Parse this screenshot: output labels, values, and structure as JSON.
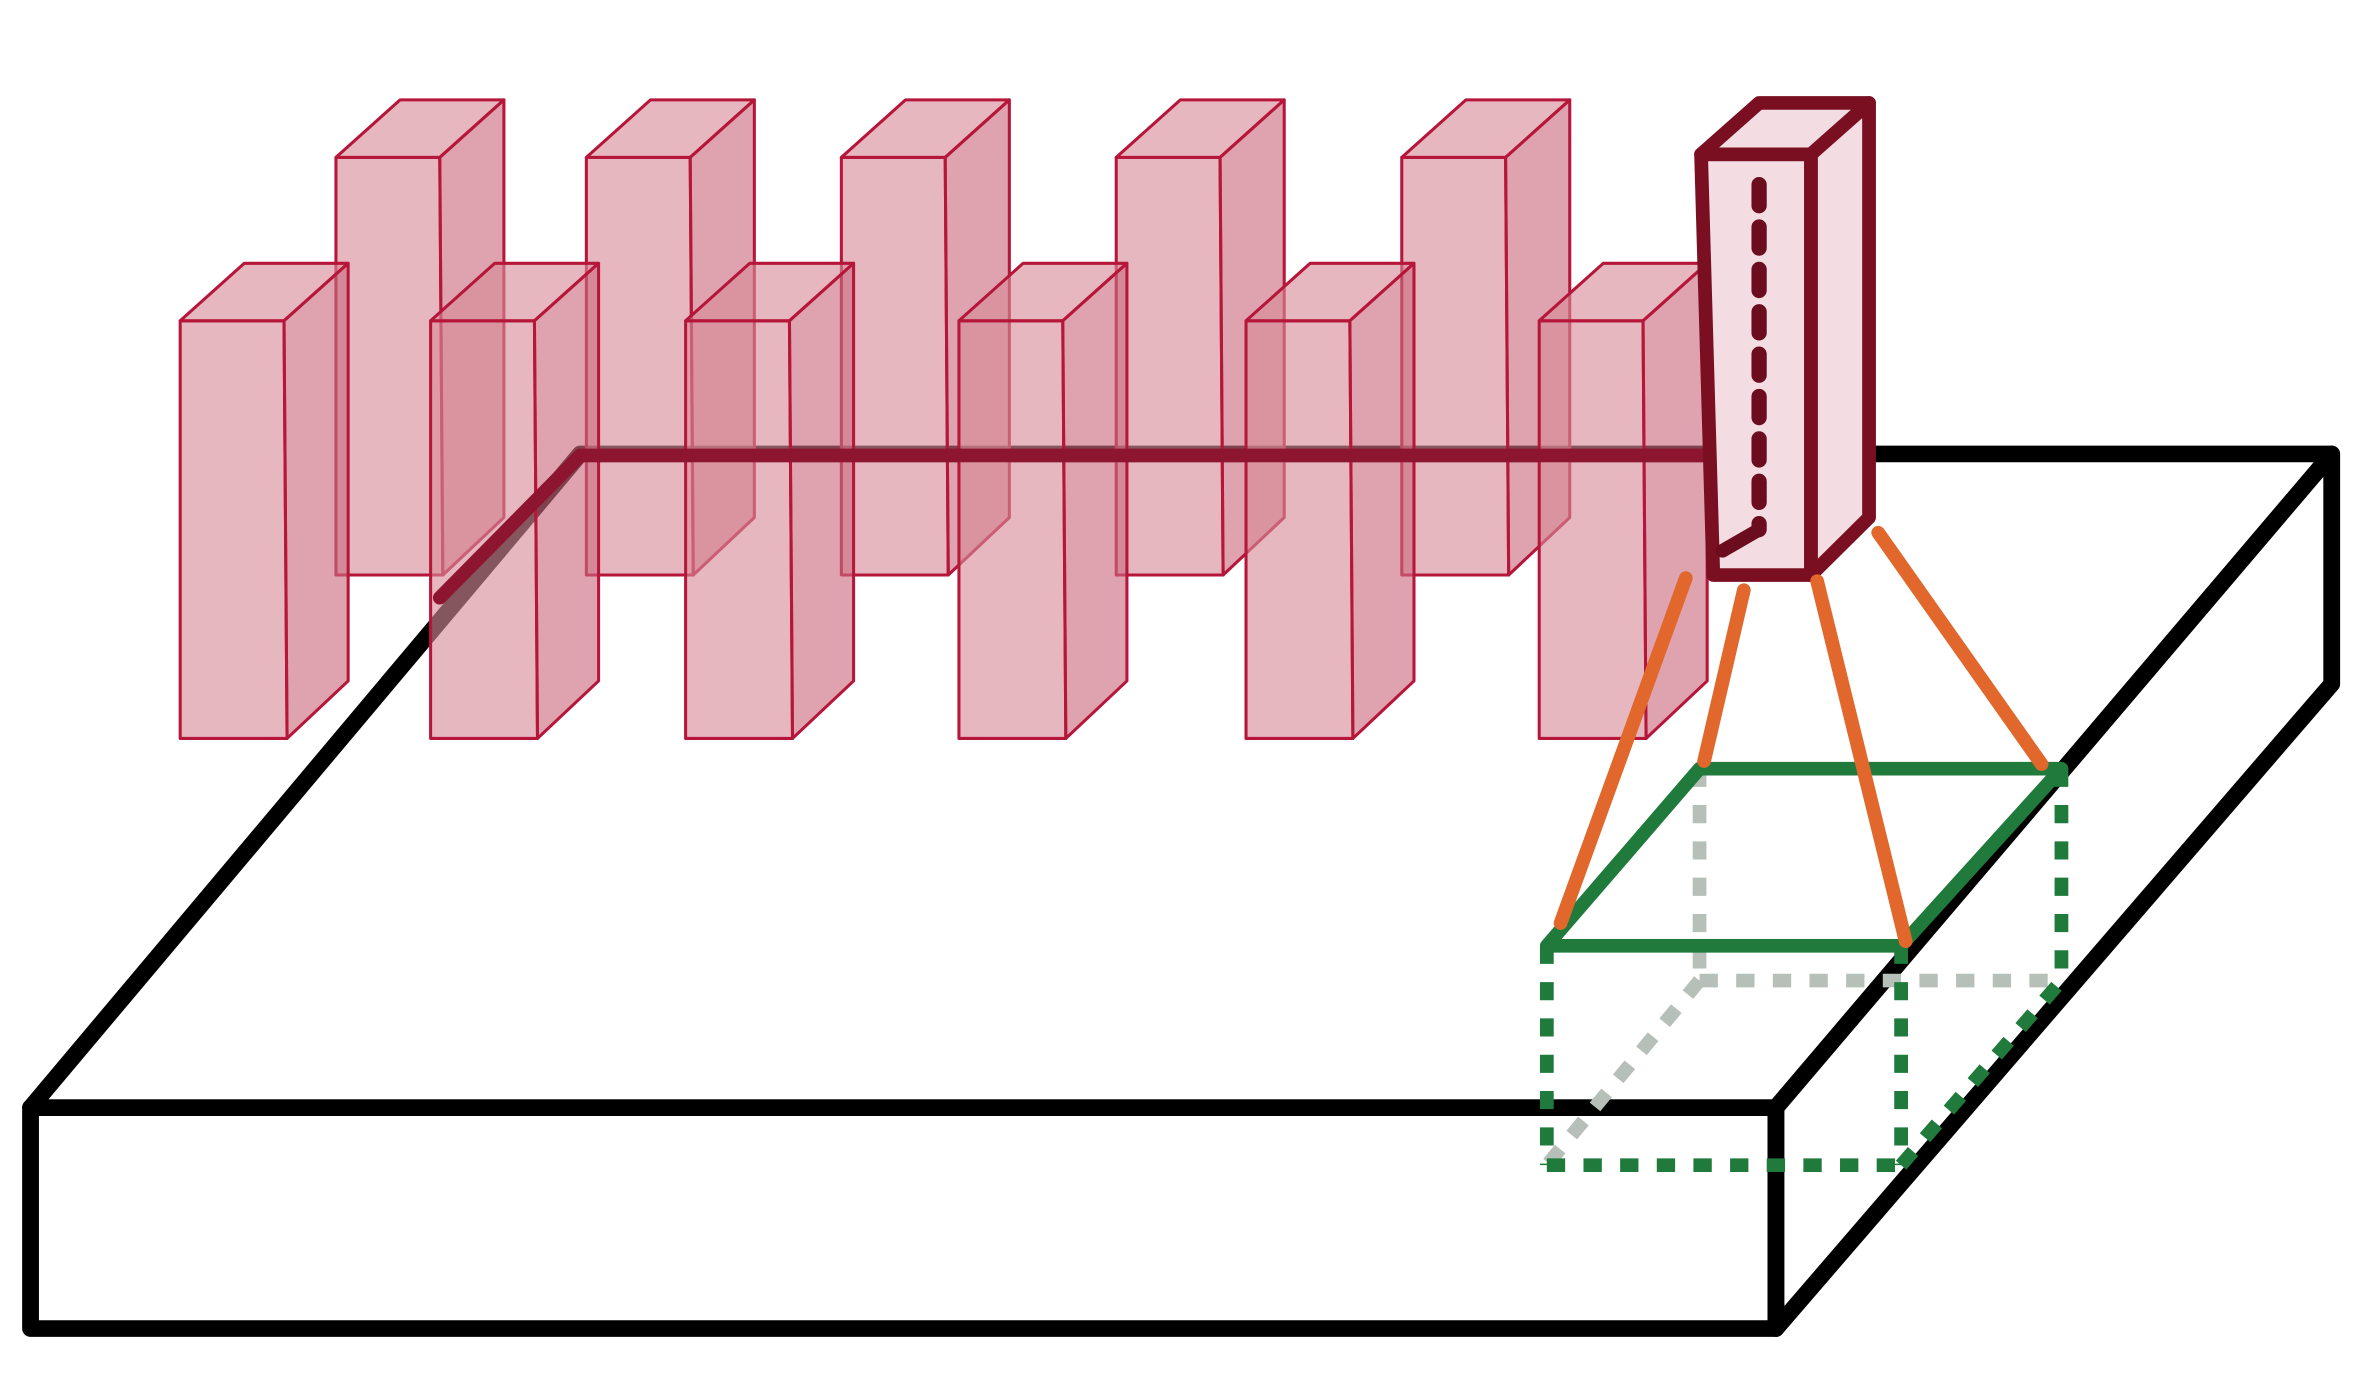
{
  "colors": {
    "background": "#ffffff",
    "volume_stroke": "#000000",
    "column_fill": "#d98a98",
    "column_stroke": "#b5163a",
    "column_side_shade": "#c96a7e",
    "selected_column_fill": "#f3dde2",
    "selected_column_stroke": "#7a0f22",
    "selected_column_dash": "#6b0d1e",
    "center_line": "#8e1530",
    "projection_lines": "#e2672c",
    "receptive_field_square": "#1f7a3c",
    "receptive_field_dashed": "#1f7a3c",
    "hidden_edges": "#b7bfb9"
  },
  "scene": {
    "input_volume": "input-volume-slab",
    "column_row_back_count": 5,
    "column_row_front_count": 6,
    "selected_column": "highlighted-depth-column",
    "projection_line_count": 4,
    "receptive_field": "local-receptive-field-cube"
  }
}
